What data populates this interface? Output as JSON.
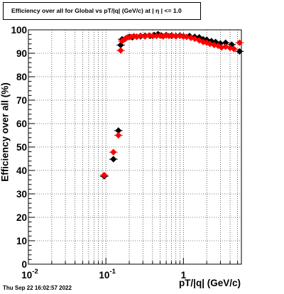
{
  "chart_data": {
    "type": "scatter",
    "title": "Efficiency over all for Global vs pT/|q| (GeV/c) at |  η  | <= 1.0",
    "xlabel": "pT/|q| (GeV/c)",
    "ylabel": "Efficiency over all (%)",
    "xscale": "log",
    "xlim": [
      0.01,
      5.6
    ],
    "ylim": [
      0,
      100
    ],
    "x_ticks": [
      {
        "value": 0.01,
        "base": "10",
        "exp": "-2"
      },
      {
        "value": 0.1,
        "base": "10",
        "exp": "-1"
      },
      {
        "value": 1,
        "base": "1",
        "exp": ""
      }
    ],
    "y_ticks": [
      "0",
      "10",
      "20",
      "30",
      "40",
      "50",
      "60",
      "70",
      "80",
      "90",
      "100"
    ],
    "grid": true,
    "series": [
      {
        "color": "#000000",
        "marker": "diamond",
        "points": [
          [
            0.095,
            37.5
          ],
          [
            0.125,
            44.8
          ],
          [
            0.145,
            57.0
          ],
          [
            0.155,
            93.5
          ],
          [
            0.162,
            96.0
          ],
          [
            0.18,
            96.3
          ],
          [
            0.2,
            97.0
          ],
          [
            0.22,
            96.8
          ],
          [
            0.25,
            97.1
          ],
          [
            0.28,
            97.2
          ],
          [
            0.32,
            97.5
          ],
          [
            0.37,
            97.4
          ],
          [
            0.42,
            97.8
          ],
          [
            0.47,
            98.2
          ],
          [
            0.52,
            97.6
          ],
          [
            0.6,
            97.8
          ],
          [
            0.7,
            97.5
          ],
          [
            0.8,
            97.4
          ],
          [
            0.9,
            97.6
          ],
          [
            1.0,
            97.3
          ],
          [
            1.2,
            97.4
          ],
          [
            1.4,
            97.0
          ],
          [
            1.6,
            96.8
          ],
          [
            1.8,
            96.0
          ],
          [
            2.0,
            95.8
          ],
          [
            2.3,
            95.2
          ],
          [
            2.6,
            94.8
          ],
          [
            3.0,
            94.2
          ],
          [
            3.5,
            94.5
          ],
          [
            4.2,
            93.7
          ],
          [
            5.3,
            90.8
          ]
        ]
      },
      {
        "color": "#ff0000",
        "marker": "diamond",
        "points": [
          [
            0.095,
            38.0
          ],
          [
            0.125,
            47.8
          ],
          [
            0.145,
            55.0
          ],
          [
            0.155,
            91.2
          ],
          [
            0.162,
            95.2
          ],
          [
            0.175,
            96.0
          ],
          [
            0.19,
            96.8
          ],
          [
            0.21,
            97.0
          ],
          [
            0.23,
            97.3
          ],
          [
            0.25,
            97.0
          ],
          [
            0.28,
            97.5
          ],
          [
            0.32,
            97.2
          ],
          [
            0.36,
            97.6
          ],
          [
            0.4,
            97.3
          ],
          [
            0.45,
            97.4
          ],
          [
            0.5,
            97.5
          ],
          [
            0.55,
            97.2
          ],
          [
            0.6,
            97.6
          ],
          [
            0.65,
            97.4
          ],
          [
            0.72,
            97.5
          ],
          [
            0.8,
            97.2
          ],
          [
            0.9,
            97.4
          ],
          [
            1.0,
            97.1
          ],
          [
            1.1,
            97.0
          ],
          [
            1.25,
            96.6
          ],
          [
            1.4,
            96.2
          ],
          [
            1.6,
            95.5
          ],
          [
            1.8,
            94.8
          ],
          [
            2.0,
            94.5
          ],
          [
            2.2,
            94.0
          ],
          [
            2.5,
            93.5
          ],
          [
            2.8,
            93.2
          ],
          [
            3.1,
            92.5
          ],
          [
            3.5,
            92.8
          ],
          [
            4.0,
            92.3
          ],
          [
            4.5,
            91.8
          ],
          [
            5.3,
            94.5
          ]
        ]
      }
    ]
  },
  "footer": {
    "timestamp": "Thu Sep 22 16:02:57 2022"
  }
}
